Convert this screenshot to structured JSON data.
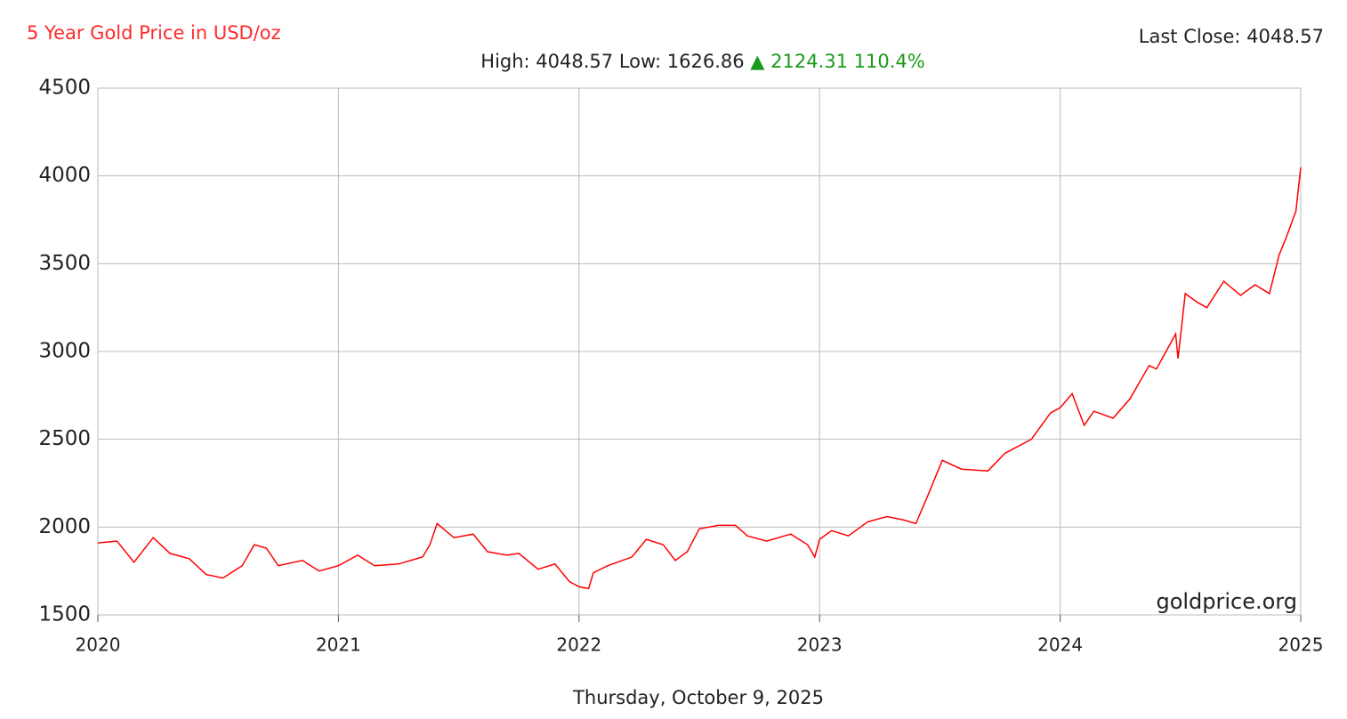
{
  "chart_data": {
    "type": "line",
    "title": "5 Year Gold Price in USD/oz",
    "last_close": "Last Close: 4048.57",
    "high_low": "High: 4048.57 Low: 1626.86",
    "change": "▲ 2124.31 110.4%",
    "date": "Thursday, October 9, 2025",
    "watermark": "goldprice.org",
    "xlim": [
      2020,
      2025
    ],
    "xticks": [
      2020,
      2021,
      2022,
      2023,
      2024,
      2025
    ],
    "ylim": [
      1500,
      4500
    ],
    "yticks": [
      1500,
      2000,
      2500,
      3000,
      3500,
      4000,
      4500
    ],
    "grid": true,
    "series": [
      {
        "name": "Gold",
        "color": "#ff0000",
        "x": [
          2020.0,
          2020.08,
          2020.15,
          2020.23,
          2020.3,
          2020.38,
          2020.45,
          2020.52,
          2020.6,
          2020.65,
          2020.7,
          2020.75,
          2020.85,
          2020.92,
          2021.0,
          2021.08,
          2021.15,
          2021.25,
          2021.35,
          2021.38,
          2021.41,
          2021.48,
          2021.56,
          2021.62,
          2021.7,
          2021.75,
          2021.83,
          2021.9,
          2021.96,
          2022.0,
          2022.04,
          2022.06,
          2022.12,
          2022.22,
          2022.28,
          2022.35,
          2022.4,
          2022.45,
          2022.5,
          2022.58,
          2022.65,
          2022.7,
          2022.78,
          2022.88,
          2022.95,
          2022.98,
          2023.0,
          2023.05,
          2023.12,
          2023.2,
          2023.28,
          2023.35,
          2023.4,
          2023.45,
          2023.51,
          2023.59,
          2023.7,
          2023.77,
          2023.88,
          2023.96,
          2024.0,
          2024.05,
          2024.1,
          2024.14,
          2024.22,
          2024.29,
          2024.37,
          2024.4,
          2024.44,
          2024.48,
          2024.49,
          2024.52,
          2024.57,
          2024.61,
          2024.68,
          2024.75,
          2024.81,
          2024.87,
          2024.91,
          2024.94,
          2024.98,
          2025.0
        ],
        "values": [
          1910,
          1920,
          1800,
          1940,
          1850,
          1820,
          1730,
          1710,
          1780,
          1900,
          1880,
          1780,
          1810,
          1750,
          1780,
          1840,
          1780,
          1790,
          1830,
          1900,
          2020,
          1940,
          1960,
          1860,
          1840,
          1850,
          1760,
          1790,
          1690,
          1660,
          1650,
          1740,
          1780,
          1830,
          1930,
          1900,
          1810,
          1860,
          1990,
          2010,
          2010,
          1950,
          1920,
          1960,
          1900,
          1830,
          1930,
          1980,
          1950,
          2030,
          2060,
          2040,
          2020,
          2180,
          2380,
          2330,
          2320,
          2420,
          2500,
          2650,
          2680,
          2760,
          2580,
          2660,
          2620,
          2730,
          2920,
          2900,
          3000,
          3100,
          2960,
          3330,
          3280,
          3250,
          3400,
          3320,
          3380,
          3330,
          3550,
          3650,
          3800,
          4048.57
        ]
      }
    ]
  }
}
